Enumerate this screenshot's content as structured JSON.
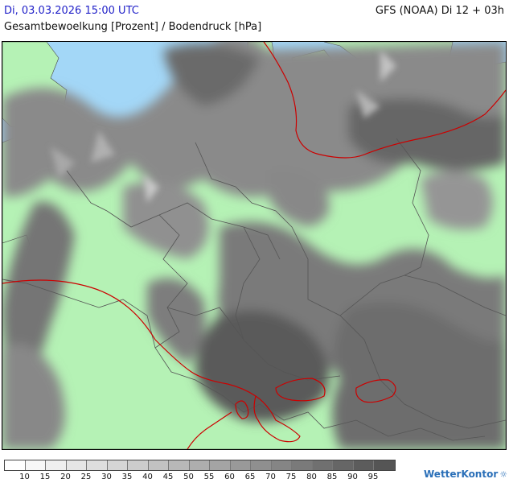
{
  "header": {
    "datetime": "Di, 03.03.2026 15:00 UTC",
    "model": "GFS (NOAA) Di 12 + 03h",
    "subtitle": "Gesamtbewoelkung [Prozent] / Bodendruck [hPa]"
  },
  "legend": {
    "colors": [
      "#ffffff",
      "#f7f7f7",
      "#efefef",
      "#e6e6e6",
      "#dedede",
      "#d5d5d5",
      "#cccccc",
      "#c2c2c2",
      "#b8b8b8",
      "#aeaeae",
      "#a4a4a4",
      "#999999",
      "#8f8f8f",
      "#858585",
      "#7a7a7a",
      "#707070",
      "#666666",
      "#5c5c5c",
      "#555555"
    ],
    "labels": [
      "10",
      "15",
      "20",
      "25",
      "30",
      "35",
      "40",
      "45",
      "50",
      "55",
      "60",
      "65",
      "70",
      "75",
      "80",
      "85",
      "90",
      "95"
    ]
  },
  "colors": {
    "land": "#b5f2b5",
    "sea": "#a3d7f7",
    "isobar": "#cc0000",
    "border": "#555555"
  },
  "brand": {
    "name": "WetterKontor",
    "icon": "sun-logo-icon"
  }
}
